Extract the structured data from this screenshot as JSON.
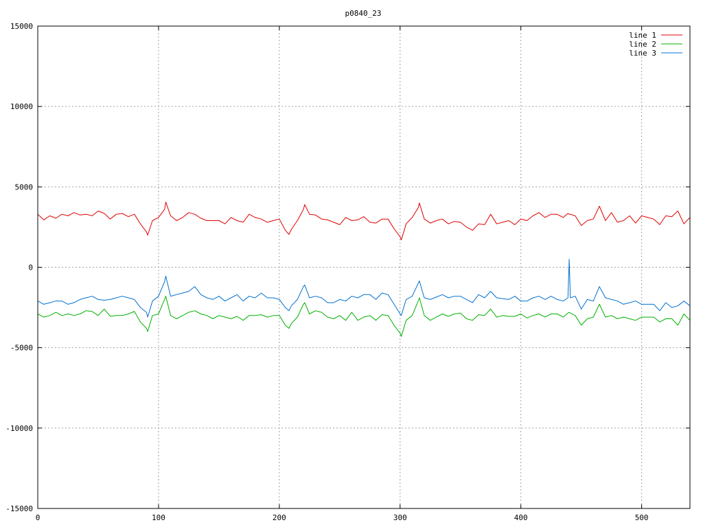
{
  "chart_data": {
    "type": "line",
    "title": "p0840_23",
    "xlabel": "",
    "ylabel": "",
    "xlim": [
      0,
      540
    ],
    "ylim": [
      -15000,
      15000
    ],
    "xticks": [
      0,
      100,
      200,
      300,
      400,
      500
    ],
    "yticks": [
      -15000,
      -10000,
      -5000,
      0,
      5000,
      10000,
      15000
    ],
    "xtick_labels": [
      "0",
      "100",
      "200",
      "300",
      "400",
      "500"
    ],
    "ytick_labels": [
      "-15000",
      "-10000",
      "-5000",
      "0",
      "5000",
      "10000",
      "15000"
    ],
    "grid": true,
    "legend_position": "top-right",
    "x": [
      0,
      5,
      10,
      15,
      20,
      25,
      30,
      35,
      40,
      45,
      50,
      55,
      60,
      65,
      70,
      75,
      80,
      85,
      90,
      91,
      95,
      100,
      105,
      106,
      110,
      115,
      120,
      125,
      130,
      135,
      140,
      145,
      150,
      155,
      160,
      165,
      170,
      175,
      180,
      185,
      190,
      195,
      200,
      205,
      208,
      210,
      215,
      220,
      221,
      225,
      230,
      235,
      240,
      245,
      250,
      255,
      260,
      265,
      270,
      275,
      280,
      285,
      290,
      295,
      300,
      301,
      305,
      310,
      315,
      316,
      320,
      325,
      330,
      335,
      340,
      345,
      350,
      355,
      360,
      365,
      370,
      375,
      380,
      385,
      390,
      395,
      400,
      405,
      410,
      415,
      420,
      425,
      430,
      435,
      439,
      440,
      441,
      445,
      450,
      455,
      460,
      465,
      470,
      475,
      480,
      485,
      490,
      495,
      500,
      505,
      510,
      515,
      520,
      525,
      530,
      535,
      540
    ],
    "series": [
      {
        "name": "line 1",
        "color": "#e00000",
        "values": [
          3300,
          2950,
          3200,
          3050,
          3300,
          3200,
          3400,
          3250,
          3300,
          3200,
          3500,
          3350,
          3000,
          3300,
          3350,
          3150,
          3300,
          2700,
          2200,
          2000,
          2900,
          3100,
          3600,
          4050,
          3200,
          2900,
          3100,
          3400,
          3300,
          3050,
          2900,
          2900,
          2900,
          2700,
          3100,
          2900,
          2800,
          3300,
          3100,
          3000,
          2800,
          2900,
          3000,
          2300,
          2050,
          2350,
          2900,
          3600,
          3900,
          3300,
          3250,
          3000,
          2950,
          2800,
          2650,
          3100,
          2900,
          2950,
          3150,
          2800,
          2750,
          3000,
          3000,
          2400,
          1900,
          1700,
          2700,
          3100,
          3700,
          4000,
          3000,
          2750,
          2900,
          3000,
          2700,
          2850,
          2800,
          2500,
          2300,
          2700,
          2650,
          3300,
          2700,
          2800,
          2900,
          2650,
          3000,
          2900,
          3200,
          3400,
          3100,
          3300,
          3300,
          3100,
          3350,
          3300,
          3300,
          3200,
          2600,
          2900,
          3000,
          3800,
          2900,
          3400,
          2800,
          2900,
          3200,
          2750,
          3200,
          3100,
          3000,
          2650,
          3200,
          3150,
          3500,
          2700,
          3100
        ]
      },
      {
        "name": "line 2",
        "color": "#00b000",
        "values": [
          -2900,
          -3100,
          -3000,
          -2800,
          -3000,
          -2900,
          -3000,
          -2900,
          -2700,
          -2750,
          -3000,
          -2600,
          -3050,
          -3000,
          -3000,
          -2900,
          -2750,
          -3400,
          -3800,
          -4000,
          -3000,
          -2900,
          -2000,
          -1800,
          -3000,
          -3200,
          -3000,
          -2800,
          -2700,
          -2900,
          -3000,
          -3200,
          -3000,
          -3100,
          -3200,
          -3050,
          -3300,
          -3000,
          -3000,
          -2950,
          -3100,
          -3000,
          -3000,
          -3600,
          -3800,
          -3500,
          -3100,
          -2300,
          -2200,
          -2900,
          -2700,
          -2800,
          -3100,
          -3200,
          -3000,
          -3300,
          -2800,
          -3300,
          -3100,
          -3000,
          -3300,
          -2950,
          -3000,
          -3600,
          -4100,
          -4300,
          -3300,
          -3000,
          -2100,
          -1900,
          -3000,
          -3300,
          -3100,
          -2900,
          -3050,
          -2900,
          -2850,
          -3200,
          -3300,
          -2950,
          -3000,
          -2600,
          -3100,
          -3000,
          -3050,
          -3050,
          -2900,
          -3150,
          -3000,
          -2900,
          -3100,
          -2900,
          -2900,
          -3100,
          -2850,
          -2800,
          -2850,
          -3000,
          -3600,
          -3200,
          -3100,
          -2300,
          -3100,
          -3000,
          -3200,
          -3100,
          -3200,
          -3300,
          -3100,
          -3100,
          -3100,
          -3400,
          -3200,
          -3200,
          -3600,
          -2900,
          -3300
        ]
      },
      {
        "name": "line 3",
        "color": "#0070d0",
        "values": [
          -2100,
          -2300,
          -2200,
          -2100,
          -2100,
          -2300,
          -2200,
          -2000,
          -1900,
          -1800,
          -2000,
          -2050,
          -2000,
          -1900,
          -1800,
          -1900,
          -2000,
          -2500,
          -2800,
          -3100,
          -2100,
          -1800,
          -900,
          -550,
          -1800,
          -1700,
          -1600,
          -1500,
          -1200,
          -1700,
          -1900,
          -2000,
          -1800,
          -2100,
          -1900,
          -1700,
          -2100,
          -1800,
          -1900,
          -1600,
          -1900,
          -1900,
          -2000,
          -2500,
          -2700,
          -2400,
          -2000,
          -1200,
          -1100,
          -1900,
          -1800,
          -1900,
          -2200,
          -2200,
          -2000,
          -2100,
          -1800,
          -1900,
          -1700,
          -1700,
          -2000,
          -1600,
          -1700,
          -2300,
          -2900,
          -3000,
          -2000,
          -1800,
          -1000,
          -850,
          -1900,
          -2000,
          -1850,
          -1700,
          -1900,
          -1800,
          -1800,
          -2000,
          -2200,
          -1700,
          -1900,
          -1500,
          -1900,
          -1950,
          -2000,
          -1800,
          -2100,
          -2100,
          -1900,
          -1800,
          -2000,
          -1800,
          -2000,
          -2100,
          -1900,
          500,
          -1900,
          -1800,
          -2600,
          -2000,
          -2100,
          -1200,
          -1900,
          -2000,
          -2100,
          -2300,
          -2200,
          -2100,
          -2300,
          -2300,
          -2300,
          -2700,
          -2200,
          -2500,
          -2400,
          -2100,
          -2400
        ]
      }
    ]
  }
}
